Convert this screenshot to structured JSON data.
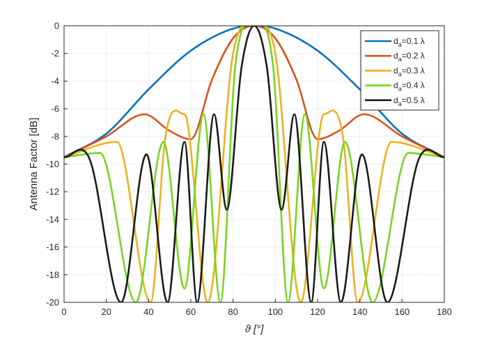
{
  "chart_data": {
    "type": "line",
    "title": "",
    "xlabel": "ϑ [°]",
    "ylabel": "Antenna Factor [dB]",
    "xlim": [
      0,
      180
    ],
    "ylim": [
      -20,
      0
    ],
    "xticks": [
      0,
      20,
      40,
      60,
      80,
      100,
      120,
      140,
      160,
      180
    ],
    "yticks": [
      0,
      -2,
      -4,
      -6,
      -8,
      -10,
      -12,
      -14,
      -16,
      -18,
      -20
    ],
    "grid": true,
    "legend_position": "top-right",
    "series": [
      {
        "label_main": "d",
        "label_sub": "a",
        "label_rest": "=0.1 λ",
        "d_over_lambda": 0.1,
        "color": "#0072BD",
        "x": [
          0,
          20,
          40,
          60,
          80,
          90,
          100,
          120,
          140,
          160,
          180
        ],
        "y": [
          -9.5,
          -7.8,
          -4.6,
          -1.8,
          -0.2,
          0,
          -0.2,
          -1.8,
          -4.6,
          -7.8,
          -9.5
        ]
      },
      {
        "label_main": "d",
        "label_sub": "a",
        "label_rest": "=0.2 λ",
        "d_over_lambda": 0.2,
        "color": "#D95319",
        "x": [
          0,
          20,
          38,
          50,
          60,
          70,
          80,
          90,
          100,
          110,
          120,
          130,
          142,
          160,
          180
        ],
        "y": [
          -9.5,
          -8.0,
          -6.4,
          -7.6,
          -8.2,
          -3.9,
          -0.9,
          0,
          -0.9,
          -3.9,
          -8.2,
          -7.6,
          -6.4,
          -8.0,
          -9.5
        ]
      },
      {
        "label_main": "d",
        "label_sub": "a",
        "label_rest": "=0.3 λ",
        "d_over_lambda": 0.3,
        "color": "#EDB120",
        "x": [
          0,
          25,
          41,
          48,
          57,
          68,
          80,
          90,
          100,
          112,
          123,
          132,
          139,
          155,
          180
        ],
        "y": [
          -9.5,
          -8.4,
          -20,
          -8.0,
          -6.4,
          -20,
          -2.0,
          0,
          -2.0,
          -20,
          -6.4,
          -8.0,
          -20,
          -8.4,
          -9.5
        ]
      },
      {
        "label_main": "d",
        "label_sub": "a",
        "label_rest": "=0.4 λ",
        "d_over_lambda": 0.4,
        "color": "#77D520",
        "x": [
          0,
          17,
          34,
          47,
          57,
          66,
          74,
          81,
          90,
          99,
          106,
          114,
          123,
          133,
          146,
          163,
          180
        ],
        "y": [
          -9.5,
          -9.2,
          -20,
          -8.4,
          -19.0,
          -6.4,
          -20,
          -3.0,
          0,
          -3.0,
          -20,
          -6.4,
          -19.0,
          -8.4,
          -20,
          -9.2,
          -9.5
        ]
      },
      {
        "label_main": "d",
        "label_sub": "a",
        "label_rest": "=0.5 λ",
        "d_over_lambda": 0.5,
        "color": "#1A1A1A",
        "x": [
          0,
          12,
          27,
          39,
          49,
          57,
          63,
          71,
          77,
          84,
          90,
          96,
          103,
          109,
          117,
          123,
          131,
          141,
          153,
          168,
          180
        ],
        "y": [
          -9.5,
          -9.6,
          -20,
          -9.3,
          -20,
          -8.4,
          -20,
          -6.4,
          -13.3,
          -3.0,
          0,
          -3.0,
          -13.3,
          -6.4,
          -20,
          -8.4,
          -20,
          -9.3,
          -20,
          -9.6,
          -9.5
        ]
      }
    ]
  }
}
